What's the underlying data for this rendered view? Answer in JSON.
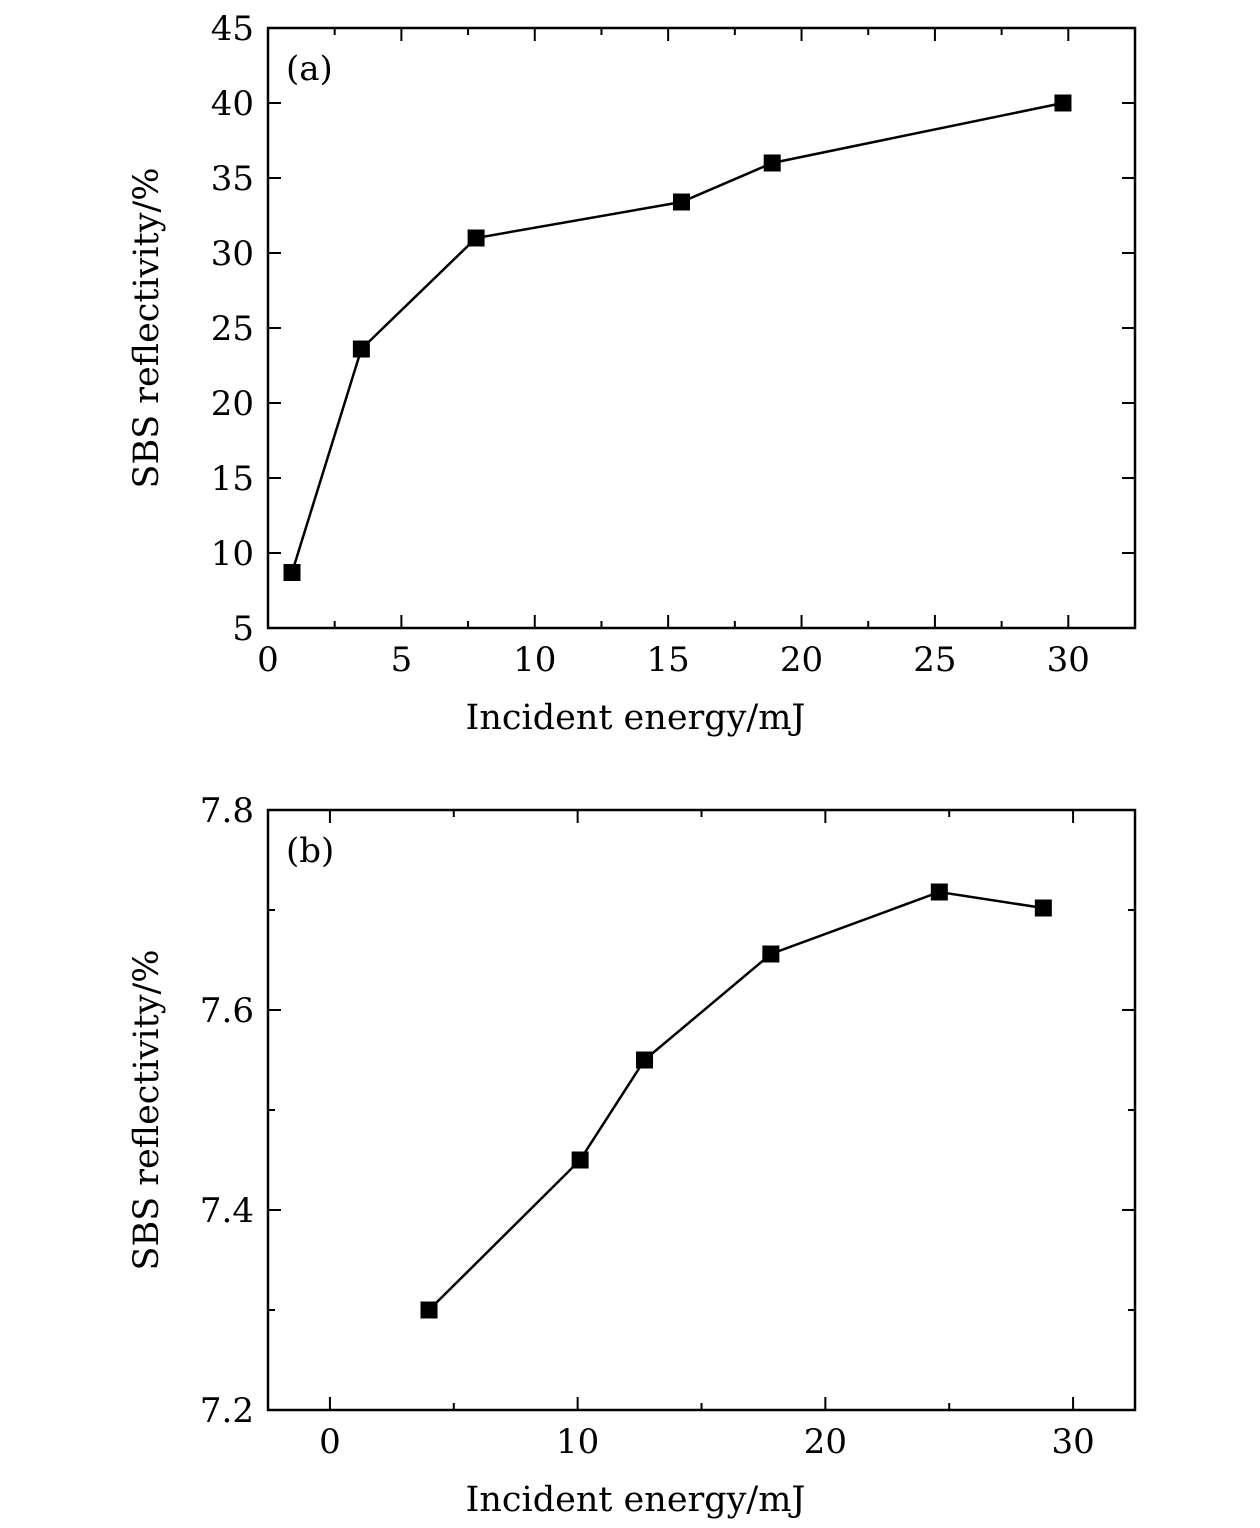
{
  "chart_data": [
    {
      "type": "line",
      "panel_label": "(a)",
      "xlabel": "Incident energy/mJ",
      "ylabel": "SBS reflectivity/%",
      "xlim": [
        0,
        32.5
      ],
      "ylim": [
        5,
        45
      ],
      "xticks": [
        0,
        5,
        10,
        15,
        20,
        25,
        30
      ],
      "xtick_labels": [
        "0",
        "5",
        "10",
        "15",
        "20",
        "25",
        "30"
      ],
      "xminor": [
        2.5,
        7.5,
        12.5,
        17.5,
        22.5,
        27.5
      ],
      "yticks": [
        5,
        10,
        15,
        20,
        25,
        30,
        35,
        40,
        45
      ],
      "ytick_labels": [
        "5",
        "10",
        "15",
        "20",
        "25",
        "30",
        "35",
        "40",
        "45"
      ],
      "grid": false,
      "marker": "square",
      "series": [
        {
          "name": "SBS reflectivity",
          "x": [
            0.9,
            3.5,
            7.8,
            15.5,
            18.9,
            29.8
          ],
          "values": [
            8.7,
            23.6,
            31.0,
            33.4,
            36.0,
            40.0
          ]
        }
      ]
    },
    {
      "type": "line",
      "panel_label": "(b)",
      "xlabel": "Incident energy/mJ",
      "ylabel": "SBS reflectivity/%",
      "xlim": [
        -2.5,
        32.5
      ],
      "ylim": [
        7.2,
        7.8
      ],
      "xticks": [
        0,
        10,
        20,
        30
      ],
      "xtick_labels": [
        "0",
        "10",
        "20",
        "30"
      ],
      "xminor": [
        5,
        15,
        25
      ],
      "yticks": [
        7.2,
        7.4,
        7.6,
        7.8
      ],
      "ytick_labels": [
        "7.2",
        "7.4",
        "7.6",
        "7.8"
      ],
      "yminor": [
        7.3,
        7.5,
        7.7
      ],
      "grid": false,
      "marker": "square",
      "series": [
        {
          "name": "SBS reflectivity",
          "x": [
            4.0,
            10.1,
            12.7,
            17.8,
            24.6,
            28.8
          ],
          "values": [
            7.3,
            7.45,
            7.55,
            7.656,
            7.718,
            7.702
          ]
        }
      ]
    }
  ]
}
